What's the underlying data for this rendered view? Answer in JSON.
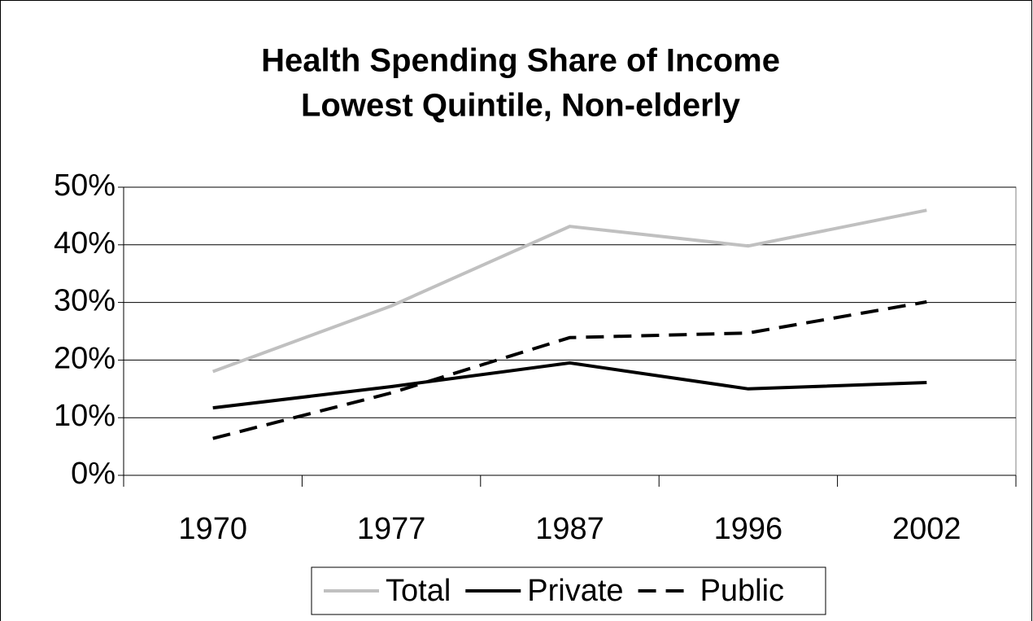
{
  "chart_data": {
    "type": "line",
    "title": [
      "Health Spending Share of Income",
      "Lowest Quintile, Non-elderly"
    ],
    "categories": [
      "1970",
      "1977",
      "1987",
      "1996",
      "2002"
    ],
    "series": [
      {
        "name": "Total",
        "color": "#c0c0c0",
        "dash": "solid",
        "values": [
          18,
          29.4,
          43.2,
          39.8,
          46
        ]
      },
      {
        "name": "Private",
        "color": "#000000",
        "dash": "solid",
        "values": [
          11.7,
          15.4,
          19.5,
          15,
          16.1
        ]
      },
      {
        "name": "Public",
        "color": "#000000",
        "dash": "dashed",
        "values": [
          6.4,
          14.3,
          23.9,
          24.7,
          30.1
        ]
      }
    ],
    "ylim": [
      0,
      50
    ],
    "yticks": [
      {
        "value": 0,
        "label": "0%"
      },
      {
        "value": 10,
        "label": "10%"
      },
      {
        "value": 20,
        "label": "20%"
      },
      {
        "value": 30,
        "label": "30%"
      },
      {
        "value": 40,
        "label": "40%"
      },
      {
        "value": 50,
        "label": "50%"
      }
    ],
    "grid": true,
    "legend": "bottom"
  }
}
